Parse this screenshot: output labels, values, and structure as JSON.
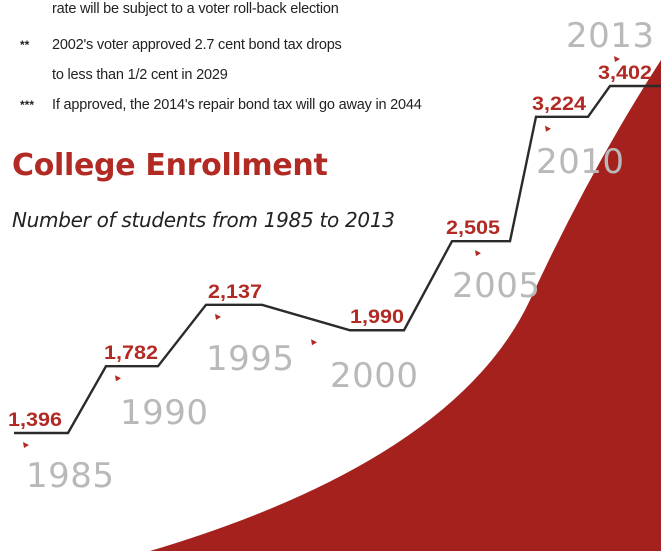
{
  "notes": [
    {
      "marker": "",
      "text": "rate will be subject to a voter roll-back election"
    },
    {
      "marker": "**",
      "text": "2002's voter approved 2.7 cent bond tax drops"
    },
    {
      "marker": "",
      "text": "to less than 1/2 cent in 2029"
    },
    {
      "marker": "***",
      "text": "If approved, the 2014's repair bond tax will go away in 2044"
    }
  ],
  "colors": {
    "accent": "#b22a24",
    "year_label": "#b9b9b9",
    "line": "#2b2b2b"
  },
  "chart_data": {
    "type": "line",
    "title": "College Enrollment",
    "subtitle": "Number of students from 1985 to 2013",
    "xlabel": "",
    "ylabel": "",
    "grid": false,
    "x": [
      "1985",
      "1990",
      "1995",
      "2000",
      "2005",
      "2010",
      "2013"
    ],
    "values": [
      1396,
      1782,
      2137,
      1990,
      2505,
      3224,
      3402
    ],
    "value_labels": [
      "1,396",
      "1,782",
      "2,137",
      "1,990",
      "2,505",
      "3,224",
      "3,402"
    ],
    "ylim": [
      1396,
      3402
    ]
  }
}
